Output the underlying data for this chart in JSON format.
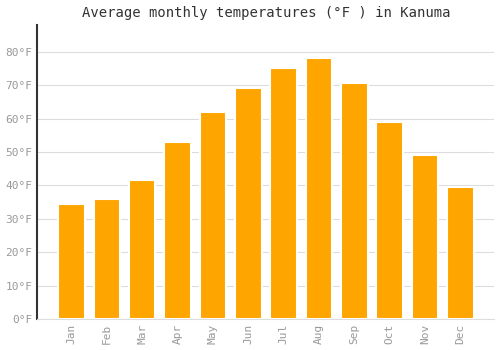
{
  "title": "Average monthly temperatures (°F ) in Kanuma",
  "months": [
    "Jan",
    "Feb",
    "Mar",
    "Apr",
    "May",
    "Jun",
    "Jul",
    "Aug",
    "Sep",
    "Oct",
    "Nov",
    "Dec"
  ],
  "values": [
    34.5,
    36.0,
    41.5,
    53.0,
    62.0,
    69.0,
    75.0,
    78.0,
    70.5,
    59.0,
    49.0,
    39.5
  ],
  "bar_color": "#FFA500",
  "bar_edge_color": "#FFFFFF",
  "background_color": "#FFFFFF",
  "grid_color": "#DDDDDD",
  "ylim": [
    0,
    88
  ],
  "yticks": [
    0,
    10,
    20,
    30,
    40,
    50,
    60,
    70,
    80
  ],
  "ytick_labels": [
    "0°F",
    "10°F",
    "20°F",
    "30°F",
    "40°F",
    "50°F",
    "60°F",
    "70°F",
    "80°F"
  ],
  "title_fontsize": 10,
  "tick_fontsize": 8,
  "tick_color": "#999999",
  "left_spine_color": "#333333",
  "bar_width": 0.75
}
